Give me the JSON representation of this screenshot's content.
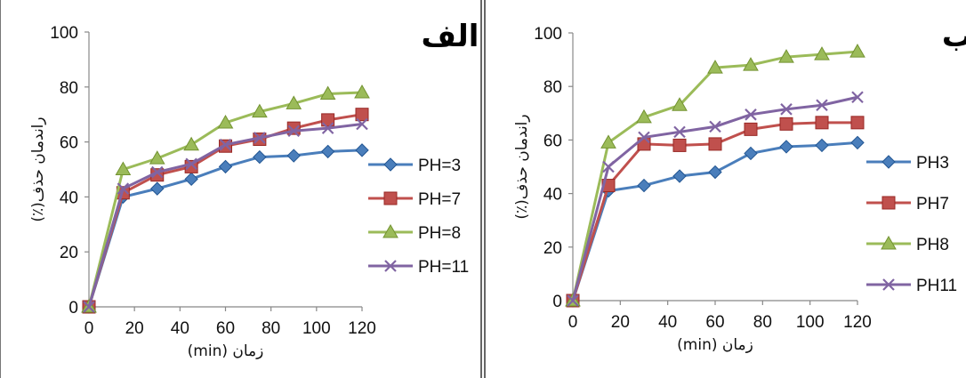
{
  "chart_data": [
    {
      "type": "line",
      "panel_label": "الف",
      "xlabel": "زمان (min)",
      "ylabel": "راندمان حذف(٪)",
      "x": [
        0,
        15,
        30,
        45,
        60,
        75,
        90,
        105,
        120
      ],
      "xticks": [
        0,
        20,
        40,
        60,
        80,
        100,
        120
      ],
      "yticks": [
        0,
        20,
        40,
        60,
        80,
        100
      ],
      "xlim": [
        0,
        120
      ],
      "ylim": [
        0,
        100
      ],
      "grid": false,
      "legend_position": "right",
      "series": [
        {
          "name": "PH=3",
          "marker": "diamond",
          "color": "#4a7ebb",
          "values": [
            0,
            40,
            43,
            46.5,
            51,
            54.5,
            55,
            56.5,
            57
          ]
        },
        {
          "name": "PH=7",
          "marker": "square",
          "color": "#c0504d",
          "values": [
            0,
            41.5,
            48,
            51,
            58.5,
            61,
            65,
            68,
            70
          ]
        },
        {
          "name": "PH=8",
          "marker": "triangle",
          "color": "#9bbb59",
          "values": [
            0,
            50,
            54,
            59,
            67,
            71,
            74,
            77.5,
            78
          ]
        },
        {
          "name": "PH=11",
          "marker": "x",
          "color": "#8064a2",
          "values": [
            0,
            43,
            49,
            52,
            59,
            61.5,
            64,
            65,
            66.5
          ]
        }
      ]
    },
    {
      "type": "line",
      "panel_label": "ب",
      "xlabel": "زمان (min)",
      "ylabel": "راندمان حذف(٪)",
      "x": [
        0,
        15,
        30,
        45,
        60,
        75,
        90,
        105,
        120
      ],
      "xticks": [
        0,
        20,
        40,
        60,
        80,
        100,
        120
      ],
      "yticks": [
        0,
        20,
        40,
        60,
        80,
        100
      ],
      "xlim": [
        0,
        120
      ],
      "ylim": [
        0,
        100
      ],
      "grid": false,
      "legend_position": "right",
      "series": [
        {
          "name": "PH3",
          "marker": "diamond",
          "color": "#4a7ebb",
          "values": [
            0,
            41,
            43,
            46.5,
            48,
            55,
            57.5,
            58,
            59
          ]
        },
        {
          "name": "PH7",
          "marker": "square",
          "color": "#c0504d",
          "values": [
            0,
            43,
            58.5,
            58,
            58.5,
            64,
            66,
            66.5,
            66.5
          ]
        },
        {
          "name": "PH8",
          "marker": "triangle",
          "color": "#9bbb59",
          "values": [
            0,
            59,
            68.5,
            73,
            87,
            88,
            91,
            92,
            93
          ]
        },
        {
          "name": "PH11",
          "marker": "x",
          "color": "#8064a2",
          "values": [
            0,
            50,
            61,
            63,
            65,
            69.5,
            71.5,
            73,
            76
          ]
        }
      ]
    }
  ]
}
